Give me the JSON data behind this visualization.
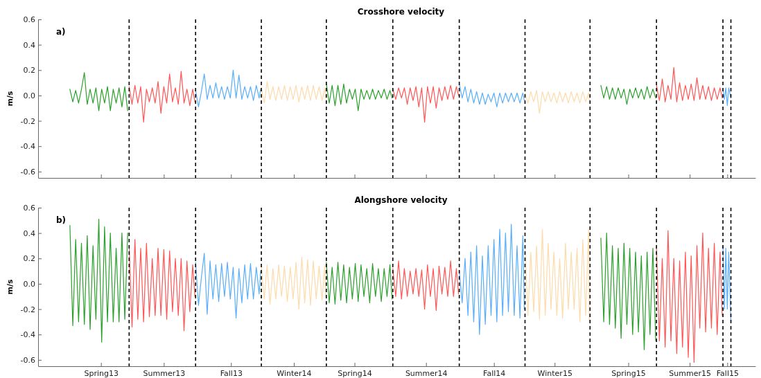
{
  "chart_data": [
    {
      "type": "line",
      "title": "Crosshore velocity",
      "ylabel": "m/s",
      "annotations": [
        "a)"
      ],
      "tick_labels": "y",
      "xlim": [
        "2013-01-26",
        "2015-10-16"
      ],
      "ylim": [
        -0.65,
        0.6
      ],
      "yticks": [
        -0.6,
        -0.4,
        -0.2,
        {
          "value": 0,
          "label": "0.0"
        },
        0.2,
        0.4,
        0.6
      ],
      "xticks": [
        {
          "value": "2013-04-23",
          "label": null
        },
        {
          "value": "2013-07-19",
          "label": null
        },
        {
          "value": "2013-10-20",
          "label": null
        },
        {
          "value": "2014-01-15",
          "label": null
        },
        {
          "value": "2014-04-09",
          "label": null
        },
        {
          "value": "2014-07-17",
          "label": null
        },
        {
          "value": "2014-10-19",
          "label": null
        },
        {
          "value": "2015-01-11",
          "label": null
        },
        {
          "value": "2015-04-23",
          "label": null
        },
        {
          "value": "2015-07-17",
          "label": null
        },
        {
          "value": "2015-09-07",
          "label": null
        }
      ],
      "ref_lines": [
        {
          "axis": "x",
          "value": "2013-06-01",
          "color": "#000000",
          "line_style": "dashed"
        },
        {
          "axis": "x",
          "value": "2013-09-01",
          "color": "#000000",
          "line_style": "dashed"
        },
        {
          "axis": "x",
          "value": "2013-12-01",
          "color": "#000000",
          "line_style": "dashed"
        },
        {
          "axis": "x",
          "value": "2014-03-01",
          "color": "#000000",
          "line_style": "dashed"
        },
        {
          "axis": "x",
          "value": "2014-06-01",
          "color": "#000000",
          "line_style": "dashed"
        },
        {
          "axis": "x",
          "value": "2014-09-01",
          "color": "#000000",
          "line_style": "dashed"
        },
        {
          "axis": "x",
          "value": "2014-12-01",
          "color": "#000000",
          "line_style": "dashed"
        },
        {
          "axis": "x",
          "value": "2015-03-01",
          "color": "#000000",
          "line_style": "dashed"
        },
        {
          "axis": "x",
          "value": "2015-06-01",
          "color": "#000000",
          "line_style": "dashed"
        },
        {
          "axis": "x",
          "value": "2015-09-01",
          "color": "#000000",
          "line_style": "dashed"
        },
        {
          "axis": "x",
          "value": "2015-09-12",
          "color": "#000000",
          "line_style": "dashed"
        }
      ],
      "series": [
        {
          "color": "#2ca02c",
          "x": [
            "2013-03-11",
            "2013-03-15",
            "2013-03-19",
            "2013-03-23",
            "2013-03-27",
            "2013-03-31",
            "2013-04-04",
            "2013-04-08",
            "2013-04-12",
            "2013-04-16",
            "2013-04-20",
            "2013-04-24",
            "2013-04-28",
            "2013-05-02",
            "2013-05-06",
            "2013-05-10",
            "2013-05-14",
            "2013-05-18",
            "2013-05-22",
            "2013-05-26",
            "2013-05-30"
          ],
          "values": [
            0.05,
            -0.05,
            0.04,
            -0.06,
            0.05,
            0.18,
            -0.07,
            0.05,
            -0.06,
            0.06,
            -0.12,
            0.05,
            -0.06,
            0.07,
            -0.12,
            0.05,
            -0.06,
            0.06,
            -0.09,
            0.07,
            -0.12
          ]
        },
        {
          "color": "#ff5555",
          "x": [
            "2013-06-01",
            "2013-06-05",
            "2013-06-09",
            "2013-06-13",
            "2013-06-17",
            "2013-06-21",
            "2013-06-25",
            "2013-06-29",
            "2013-07-03",
            "2013-07-07",
            "2013-07-11",
            "2013-07-15",
            "2013-07-19",
            "2013-07-23",
            "2013-07-27",
            "2013-07-31",
            "2013-08-04",
            "2013-08-08",
            "2013-08-12",
            "2013-08-16",
            "2013-08-20",
            "2013-08-24",
            "2013-08-28",
            "2013-08-31"
          ],
          "values": [
            0.07,
            -0.07,
            0.08,
            -0.06,
            0.07,
            -0.21,
            0.05,
            -0.05,
            0.06,
            -0.06,
            0.11,
            -0.14,
            0.07,
            -0.06,
            0.17,
            -0.05,
            0.06,
            -0.07,
            0.19,
            -0.06,
            0.05,
            -0.08,
            0.05,
            -0.05
          ]
        },
        {
          "color": "#58aefa",
          "x": [
            "2013-09-01",
            "2013-09-05",
            "2013-09-09",
            "2013-09-13",
            "2013-09-17",
            "2013-09-21",
            "2013-09-25",
            "2013-09-29",
            "2013-10-03",
            "2013-10-07",
            "2013-10-11",
            "2013-10-15",
            "2013-10-19",
            "2013-10-23",
            "2013-10-27",
            "2013-10-31",
            "2013-11-04",
            "2013-11-08",
            "2013-11-12",
            "2013-11-16",
            "2013-11-20",
            "2013-11-24",
            "2013-11-28",
            "2013-11-30"
          ],
          "values": [
            0.04,
            -0.09,
            0.03,
            0.17,
            -0.03,
            0.08,
            -0.02,
            0.1,
            -0.02,
            0.07,
            -0.03,
            0.07,
            -0.02,
            0.2,
            -0.02,
            0.16,
            -0.03,
            0.07,
            -0.02,
            0.07,
            -0.04,
            0.08,
            -0.02,
            0.05
          ]
        },
        {
          "color": "#fddbab",
          "x": [
            "2013-12-01",
            "2013-12-05",
            "2013-12-09",
            "2013-12-13",
            "2013-12-17",
            "2013-12-21",
            "2013-12-25",
            "2013-12-29",
            "2014-01-02",
            "2014-01-06",
            "2014-01-10",
            "2014-01-14",
            "2014-01-18",
            "2014-01-22",
            "2014-01-26",
            "2014-01-30",
            "2014-02-03",
            "2014-02-07",
            "2014-02-11",
            "2014-02-15",
            "2014-02-19",
            "2014-02-23",
            "2014-02-27",
            "2014-02-28"
          ],
          "values": [
            0.06,
            -0.06,
            0.11,
            -0.03,
            0.07,
            -0.04,
            0.07,
            -0.03,
            0.08,
            -0.04,
            0.07,
            -0.03,
            0.08,
            -0.05,
            0.07,
            -0.03,
            0.08,
            -0.04,
            0.08,
            -0.03,
            0.07,
            -0.04,
            0.06,
            -0.02
          ]
        },
        {
          "color": "#2ca02c",
          "x": [
            "2014-03-01",
            "2014-03-05",
            "2014-03-09",
            "2014-03-13",
            "2014-03-17",
            "2014-03-21",
            "2014-03-25",
            "2014-03-29",
            "2014-04-02",
            "2014-04-06",
            "2014-04-10",
            "2014-04-14",
            "2014-04-18",
            "2014-04-22",
            "2014-04-26",
            "2014-04-30",
            "2014-05-04",
            "2014-05-08",
            "2014-05-12",
            "2014-05-16",
            "2014-05-20",
            "2014-05-24",
            "2014-05-28",
            "2014-05-31"
          ],
          "values": [
            0.09,
            -0.06,
            0.08,
            -0.08,
            0.08,
            -0.07,
            0.09,
            -0.06,
            0.05,
            -0.03,
            0.05,
            -0.12,
            0.05,
            -0.03,
            0.04,
            -0.03,
            0.05,
            -0.03,
            0.04,
            -0.02,
            0.05,
            -0.03,
            0.04,
            -0.02
          ]
        },
        {
          "color": "#ff5555",
          "x": [
            "2014-06-01",
            "2014-06-05",
            "2014-06-09",
            "2014-06-13",
            "2014-06-17",
            "2014-06-21",
            "2014-06-25",
            "2014-06-29",
            "2014-07-03",
            "2014-07-07",
            "2014-07-11",
            "2014-07-15",
            "2014-07-19",
            "2014-07-23",
            "2014-07-27",
            "2014-07-31",
            "2014-08-04",
            "2014-08-08",
            "2014-08-12",
            "2014-08-16",
            "2014-08-20",
            "2014-08-24",
            "2014-08-28",
            "2014-08-31"
          ],
          "values": [
            0.05,
            -0.03,
            0.06,
            -0.02,
            0.06,
            -0.07,
            0.06,
            -0.04,
            0.07,
            -0.09,
            0.06,
            -0.21,
            0.07,
            -0.06,
            0.07,
            -0.1,
            0.06,
            -0.04,
            0.07,
            -0.03,
            0.08,
            -0.03,
            0.07,
            0.0
          ]
        },
        {
          "color": "#58aefa",
          "x": [
            "2014-09-01",
            "2014-09-05",
            "2014-09-09",
            "2014-09-13",
            "2014-09-17",
            "2014-09-21",
            "2014-09-25",
            "2014-09-29",
            "2014-10-03",
            "2014-10-07",
            "2014-10-11",
            "2014-10-15",
            "2014-10-19",
            "2014-10-23",
            "2014-10-27",
            "2014-10-31",
            "2014-11-04",
            "2014-11-08",
            "2014-11-12",
            "2014-11-16",
            "2014-11-20",
            "2014-11-24",
            "2014-11-28",
            "2014-11-30"
          ],
          "values": [
            0.09,
            -0.02,
            0.07,
            -0.05,
            0.05,
            -0.06,
            0.03,
            -0.07,
            0.02,
            -0.07,
            0.01,
            -0.05,
            0.02,
            -0.09,
            0.02,
            -0.06,
            0.02,
            -0.05,
            0.02,
            -0.05,
            0.02,
            -0.06,
            0.02,
            -0.04
          ]
        },
        {
          "color": "#fddbab",
          "x": [
            "2014-12-01",
            "2014-12-05",
            "2014-12-09",
            "2014-12-13",
            "2014-12-17",
            "2014-12-21",
            "2014-12-25",
            "2014-12-29",
            "2015-01-02",
            "2015-01-06",
            "2015-01-10",
            "2015-01-14",
            "2015-01-18",
            "2015-01-22",
            "2015-01-26",
            "2015-01-30",
            "2015-02-03",
            "2015-02-07",
            "2015-02-11",
            "2015-02-15",
            "2015-02-19",
            "2015-02-23",
            "2015-02-27",
            "2015-02-28"
          ],
          "values": [
            0.02,
            -0.06,
            0.03,
            -0.05,
            0.04,
            -0.14,
            0.03,
            -0.05,
            0.03,
            -0.05,
            0.02,
            -0.06,
            0.03,
            -0.05,
            0.02,
            -0.06,
            0.03,
            -0.05,
            0.02,
            -0.06,
            0.03,
            -0.05,
            0.02,
            -0.04
          ]
        },
        {
          "color": "#2ca02c",
          "x": [
            "2015-03-16",
            "2015-03-20",
            "2015-03-24",
            "2015-03-28",
            "2015-04-01",
            "2015-04-05",
            "2015-04-09",
            "2015-04-13",
            "2015-04-17",
            "2015-04-21",
            "2015-04-25",
            "2015-04-29",
            "2015-05-03",
            "2015-05-07",
            "2015-05-11",
            "2015-05-15",
            "2015-05-19",
            "2015-05-23",
            "2015-05-27",
            "2015-05-31"
          ],
          "values": [
            0.08,
            -0.02,
            0.07,
            -0.03,
            0.06,
            -0.03,
            0.06,
            -0.02,
            0.05,
            -0.07,
            0.05,
            -0.02,
            0.06,
            -0.02,
            0.05,
            -0.03,
            0.07,
            -0.02,
            0.05,
            -0.02
          ]
        },
        {
          "color": "#ff5555",
          "x": [
            "2015-06-01",
            "2015-06-05",
            "2015-06-09",
            "2015-06-13",
            "2015-06-17",
            "2015-06-21",
            "2015-06-25",
            "2015-06-29",
            "2015-07-03",
            "2015-07-07",
            "2015-07-11",
            "2015-07-15",
            "2015-07-19",
            "2015-07-23",
            "2015-07-27",
            "2015-07-31",
            "2015-08-04",
            "2015-08-08",
            "2015-08-12",
            "2015-08-16",
            "2015-08-20",
            "2015-08-24",
            "2015-08-28",
            "2015-08-31"
          ],
          "values": [
            0.08,
            -0.04,
            0.13,
            -0.05,
            0.08,
            -0.03,
            0.22,
            -0.05,
            0.1,
            -0.04,
            0.08,
            -0.03,
            0.09,
            -0.04,
            0.14,
            -0.03,
            0.08,
            -0.03,
            0.07,
            -0.04,
            0.06,
            -0.03,
            0.06,
            -0.02
          ]
        },
        {
          "color": "#58aefa",
          "x": [
            "2015-09-01",
            "2015-09-03",
            "2015-09-05",
            "2015-09-07",
            "2015-09-09",
            "2015-09-12"
          ],
          "values": [
            0.05,
            -0.03,
            0.06,
            -0.08,
            0.06,
            -0.02
          ]
        }
      ]
    },
    {
      "type": "line",
      "title": "Alongshore velocity",
      "ylabel": "m/s",
      "annotations": [
        "b)"
      ],
      "xlim": [
        "2013-01-26",
        "2015-10-16"
      ],
      "ylim": [
        -0.65,
        0.6
      ],
      "yticks": [
        -0.6,
        -0.4,
        -0.2,
        {
          "value": 0,
          "label": "0.0"
        },
        0.2,
        0.4,
        0.6
      ],
      "xticks": [
        {
          "value": "2013-04-23",
          "label": "Spring13"
        },
        {
          "value": "2013-07-19",
          "label": "Summer13"
        },
        {
          "value": "2013-10-20",
          "label": "Fall13"
        },
        {
          "value": "2014-01-15",
          "label": "Winter14"
        },
        {
          "value": "2014-04-09",
          "label": "Spring14"
        },
        {
          "value": "2014-07-17",
          "label": "Summer14"
        },
        {
          "value": "2014-10-19",
          "label": "Fall14"
        },
        {
          "value": "2015-01-11",
          "label": "Winter15"
        },
        {
          "value": "2015-04-23",
          "label": "Spring15"
        },
        {
          "value": "2015-07-17",
          "label": "Summer15"
        },
        {
          "value": "2015-09-07",
          "label": "Fall15"
        }
      ],
      "ref_lines": [
        {
          "axis": "x",
          "value": "2013-06-01",
          "color": "#000000",
          "line_style": "dashed"
        },
        {
          "axis": "x",
          "value": "2013-09-01",
          "color": "#000000",
          "line_style": "dashed"
        },
        {
          "axis": "x",
          "value": "2013-12-01",
          "color": "#000000",
          "line_style": "dashed"
        },
        {
          "axis": "x",
          "value": "2014-03-01",
          "color": "#000000",
          "line_style": "dashed"
        },
        {
          "axis": "x",
          "value": "2014-06-01",
          "color": "#000000",
          "line_style": "dashed"
        },
        {
          "axis": "x",
          "value": "2014-09-01",
          "color": "#000000",
          "line_style": "dashed"
        },
        {
          "axis": "x",
          "value": "2014-12-01",
          "color": "#000000",
          "line_style": "dashed"
        },
        {
          "axis": "x",
          "value": "2015-03-01",
          "color": "#000000",
          "line_style": "dashed"
        },
        {
          "axis": "x",
          "value": "2015-06-01",
          "color": "#000000",
          "line_style": "dashed"
        },
        {
          "axis": "x",
          "value": "2015-09-01",
          "color": "#000000",
          "line_style": "dashed"
        },
        {
          "axis": "x",
          "value": "2015-09-12",
          "color": "#000000",
          "line_style": "dashed"
        }
      ],
      "series": [
        {
          "color": "#2ca02c",
          "x": [
            "2013-03-11",
            "2013-03-15",
            "2013-03-19",
            "2013-03-23",
            "2013-03-27",
            "2013-03-31",
            "2013-04-04",
            "2013-04-08",
            "2013-04-12",
            "2013-04-16",
            "2013-04-20",
            "2013-04-24",
            "2013-04-28",
            "2013-05-02",
            "2013-05-06",
            "2013-05-10",
            "2013-05-14",
            "2013-05-18",
            "2013-05-22",
            "2013-05-26",
            "2013-05-30"
          ],
          "values": [
            0.46,
            -0.33,
            0.35,
            -0.3,
            0.32,
            -0.32,
            0.38,
            -0.36,
            0.3,
            -0.28,
            0.51,
            -0.46,
            0.45,
            -0.3,
            0.4,
            -0.3,
            0.28,
            -0.3,
            0.4,
            -0.28,
            0.4
          ]
        },
        {
          "color": "#ff5555",
          "x": [
            "2013-06-01",
            "2013-06-05",
            "2013-06-09",
            "2013-06-13",
            "2013-06-17",
            "2013-06-21",
            "2013-06-25",
            "2013-06-29",
            "2013-07-03",
            "2013-07-07",
            "2013-07-11",
            "2013-07-15",
            "2013-07-19",
            "2013-07-23",
            "2013-07-27",
            "2013-07-31",
            "2013-08-04",
            "2013-08-08",
            "2013-08-12",
            "2013-08-16",
            "2013-08-20",
            "2013-08-24",
            "2013-08-28",
            "2013-08-31"
          ],
          "values": [
            0.3,
            -0.34,
            0.35,
            -0.28,
            0.28,
            -0.3,
            0.32,
            -0.26,
            0.2,
            -0.25,
            0.28,
            -0.25,
            0.27,
            -0.28,
            0.26,
            -0.22,
            0.2,
            -0.25,
            0.2,
            -0.37,
            0.18,
            -0.22,
            0.15,
            -0.1
          ]
        },
        {
          "color": "#58aefa",
          "x": [
            "2013-09-01",
            "2013-09-05",
            "2013-09-09",
            "2013-09-13",
            "2013-09-17",
            "2013-09-21",
            "2013-09-25",
            "2013-09-29",
            "2013-10-03",
            "2013-10-07",
            "2013-10-11",
            "2013-10-15",
            "2013-10-19",
            "2013-10-23",
            "2013-10-27",
            "2013-10-31",
            "2013-11-04",
            "2013-11-08",
            "2013-11-12",
            "2013-11-16",
            "2013-11-20",
            "2013-11-24",
            "2013-11-28",
            "2013-11-30"
          ],
          "values": [
            0.17,
            -0.17,
            0.05,
            0.24,
            -0.24,
            0.18,
            -0.12,
            0.15,
            -0.14,
            0.16,
            -0.1,
            0.17,
            -0.12,
            0.13,
            -0.27,
            0.12,
            -0.15,
            0.15,
            -0.12,
            0.16,
            -0.12,
            0.13,
            -0.08,
            0.1
          ]
        },
        {
          "color": "#fddbab",
          "x": [
            "2013-12-01",
            "2013-12-05",
            "2013-12-09",
            "2013-12-13",
            "2013-12-17",
            "2013-12-21",
            "2013-12-25",
            "2013-12-29",
            "2014-01-02",
            "2014-01-06",
            "2014-01-10",
            "2014-01-14",
            "2014-01-18",
            "2014-01-22",
            "2014-01-26",
            "2014-01-30",
            "2014-02-03",
            "2014-02-07",
            "2014-02-11",
            "2014-02-15",
            "2014-02-19",
            "2014-02-23",
            "2014-02-27",
            "2014-02-28"
          ],
          "values": [
            0.14,
            -0.12,
            0.15,
            -0.16,
            0.12,
            -0.12,
            0.15,
            -0.1,
            0.14,
            -0.14,
            0.13,
            -0.12,
            0.17,
            -0.2,
            0.21,
            -0.15,
            0.19,
            -0.17,
            0.18,
            -0.12,
            0.14,
            -0.13,
            0.15,
            -0.1
          ]
        },
        {
          "color": "#2ca02c",
          "x": [
            "2014-03-01",
            "2014-03-05",
            "2014-03-09",
            "2014-03-13",
            "2014-03-17",
            "2014-03-21",
            "2014-03-25",
            "2014-03-29",
            "2014-04-02",
            "2014-04-06",
            "2014-04-10",
            "2014-04-14",
            "2014-04-18",
            "2014-04-22",
            "2014-04-26",
            "2014-04-30",
            "2014-05-04",
            "2014-05-08",
            "2014-05-12",
            "2014-05-16",
            "2014-05-20",
            "2014-05-24",
            "2014-05-28",
            "2014-05-31"
          ],
          "values": [
            0.17,
            -0.15,
            0.13,
            -0.16,
            0.17,
            -0.13,
            0.15,
            -0.15,
            0.13,
            -0.12,
            0.16,
            -0.14,
            0.15,
            -0.1,
            0.12,
            -0.15,
            0.16,
            -0.1,
            0.12,
            -0.14,
            0.12,
            -0.1,
            0.15,
            -0.12
          ]
        },
        {
          "color": "#ff5555",
          "x": [
            "2014-06-01",
            "2014-06-05",
            "2014-06-09",
            "2014-06-13",
            "2014-06-17",
            "2014-06-21",
            "2014-06-25",
            "2014-06-29",
            "2014-07-03",
            "2014-07-07",
            "2014-07-11",
            "2014-07-15",
            "2014-07-19",
            "2014-07-23",
            "2014-07-27",
            "2014-07-31",
            "2014-08-04",
            "2014-08-08",
            "2014-08-12",
            "2014-08-16",
            "2014-08-20",
            "2014-08-24",
            "2014-08-28",
            "2014-08-31"
          ],
          "values": [
            0.12,
            -0.1,
            0.18,
            -0.12,
            0.12,
            -0.1,
            0.1,
            -0.08,
            0.12,
            -0.1,
            0.11,
            -0.2,
            0.15,
            -0.1,
            0.12,
            -0.21,
            0.14,
            -0.08,
            0.13,
            -0.1,
            0.18,
            -0.1,
            0.12,
            -0.08
          ]
        },
        {
          "color": "#58aefa",
          "x": [
            "2014-09-01",
            "2014-09-05",
            "2014-09-09",
            "2014-09-13",
            "2014-09-17",
            "2014-09-21",
            "2014-09-25",
            "2014-09-29",
            "2014-10-03",
            "2014-10-07",
            "2014-10-11",
            "2014-10-15",
            "2014-10-19",
            "2014-10-23",
            "2014-10-27",
            "2014-10-31",
            "2014-11-04",
            "2014-11-08",
            "2014-11-12",
            "2014-11-16",
            "2014-11-20",
            "2014-11-24",
            "2014-11-28",
            "2014-11-30"
          ],
          "values": [
            0.1,
            -0.15,
            0.2,
            -0.25,
            0.25,
            -0.3,
            0.3,
            -0.4,
            0.22,
            -0.32,
            0.3,
            -0.25,
            0.35,
            -0.3,
            0.43,
            -0.25,
            0.4,
            -0.22,
            0.47,
            -0.25,
            0.3,
            -0.27,
            0.38,
            -0.2
          ]
        },
        {
          "color": "#fddbab",
          "x": [
            "2014-12-01",
            "2014-12-05",
            "2014-12-09",
            "2014-12-13",
            "2014-12-17",
            "2014-12-21",
            "2014-12-25",
            "2014-12-29",
            "2015-01-02",
            "2015-01-06",
            "2015-01-10",
            "2015-01-14",
            "2015-01-18",
            "2015-01-22",
            "2015-01-26",
            "2015-01-30",
            "2015-02-03",
            "2015-02-07",
            "2015-02-11",
            "2015-02-15",
            "2015-02-19",
            "2015-02-23",
            "2015-02-27",
            "2015-02-28"
          ],
          "values": [
            0.3,
            -0.25,
            0.25,
            -0.22,
            0.3,
            -0.28,
            0.43,
            -0.25,
            0.32,
            -0.2,
            0.25,
            -0.25,
            0.2,
            -0.27,
            0.32,
            -0.2,
            0.25,
            -0.2,
            0.28,
            -0.3,
            0.35,
            -0.25,
            0.43,
            -0.3
          ]
        },
        {
          "color": "#2ca02c",
          "x": [
            "2015-03-16",
            "2015-03-20",
            "2015-03-24",
            "2015-03-28",
            "2015-04-01",
            "2015-04-05",
            "2015-04-09",
            "2015-04-13",
            "2015-04-17",
            "2015-04-21",
            "2015-04-25",
            "2015-04-29",
            "2015-05-03",
            "2015-05-07",
            "2015-05-11",
            "2015-05-15",
            "2015-05-19",
            "2015-05-23",
            "2015-05-27",
            "2015-05-31"
          ],
          "values": [
            0.36,
            -0.3,
            0.4,
            -0.32,
            0.3,
            -0.35,
            0.28,
            -0.43,
            0.32,
            -0.32,
            0.28,
            -0.4,
            0.25,
            -0.38,
            0.22,
            -0.52,
            0.25,
            -0.4,
            0.28,
            -0.45
          ]
        },
        {
          "color": "#ff5555",
          "x": [
            "2015-06-01",
            "2015-06-05",
            "2015-06-09",
            "2015-06-13",
            "2015-06-17",
            "2015-06-21",
            "2015-06-25",
            "2015-06-29",
            "2015-07-03",
            "2015-07-07",
            "2015-07-11",
            "2015-07-15",
            "2015-07-19",
            "2015-07-23",
            "2015-07-27",
            "2015-07-31",
            "2015-08-04",
            "2015-08-08",
            "2015-08-12",
            "2015-08-16",
            "2015-08-20",
            "2015-08-24",
            "2015-08-28",
            "2015-08-31"
          ],
          "values": [
            0.28,
            -0.45,
            0.2,
            -0.5,
            0.42,
            -0.45,
            0.2,
            -0.55,
            0.18,
            -0.5,
            0.25,
            -0.58,
            0.22,
            -0.62,
            0.3,
            -0.35,
            0.4,
            -0.38,
            0.28,
            -0.35,
            0.32,
            -0.4,
            0.25,
            -0.25
          ]
        },
        {
          "color": "#58aefa",
          "x": [
            "2015-09-01",
            "2015-09-03",
            "2015-09-05",
            "2015-09-07",
            "2015-09-09",
            "2015-09-12"
          ],
          "values": [
            0.3,
            -0.2,
            0.28,
            -0.2,
            0.25,
            -0.3
          ]
        }
      ]
    }
  ]
}
